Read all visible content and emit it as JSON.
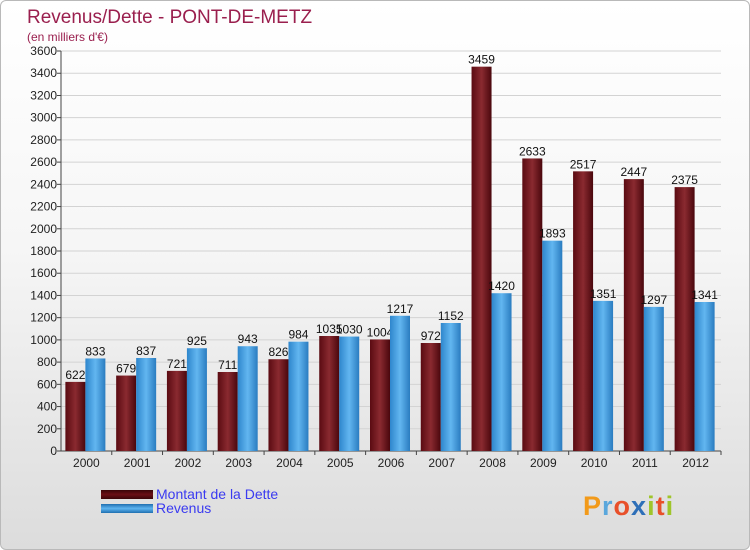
{
  "title": "Revenus/Dette - PONT-DE-METZ",
  "subtitle": "(en milliers d'€)",
  "logo_text": "Proxiti",
  "colors": {
    "dette": "#6b0f16",
    "revenus": "#3d9fe0",
    "title": "#9a1f4e",
    "legend_text": "#3a3af0"
  },
  "legend": [
    {
      "label": "Montant de la Dette",
      "color": "#6b0f16"
    },
    {
      "label": "Revenus",
      "color": "#3d9fe0"
    }
  ],
  "chart_data": {
    "type": "bar",
    "title": "Revenus/Dette - PONT-DE-METZ",
    "subtitle": "(en milliers d'€)",
    "categories": [
      "2000",
      "2001",
      "2002",
      "2003",
      "2004",
      "2005",
      "2006",
      "2007",
      "2008",
      "2009",
      "2010",
      "2011",
      "2012"
    ],
    "series": [
      {
        "name": "Montant de la Dette",
        "values": [
          622,
          679,
          721,
          711,
          826,
          1035,
          1004,
          972,
          3459,
          2633,
          2517,
          2447,
          2375
        ]
      },
      {
        "name": "Revenus",
        "values": [
          833,
          837,
          925,
          943,
          984,
          1030,
          1217,
          1152,
          1420,
          1893,
          1351,
          1297,
          1341
        ]
      }
    ],
    "ylim": [
      0,
      3600
    ],
    "yticks": [
      0,
      200,
      400,
      600,
      800,
      1000,
      1200,
      1400,
      1600,
      1800,
      2000,
      2200,
      2400,
      2600,
      2800,
      3000,
      3200,
      3400,
      3600
    ],
    "grid": true,
    "legend_position": "bottom-left"
  }
}
